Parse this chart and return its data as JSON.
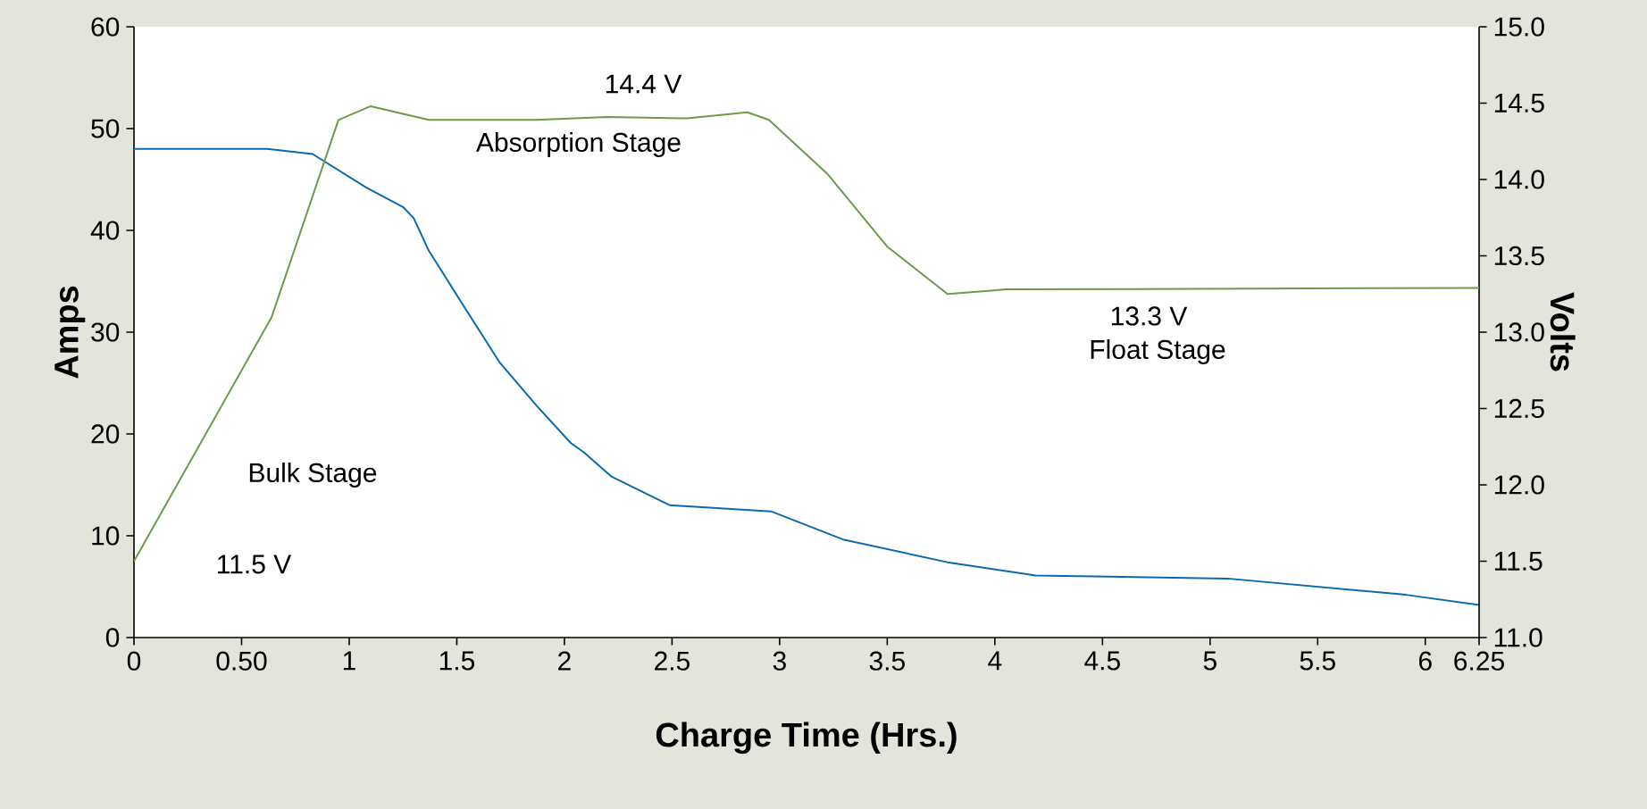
{
  "chart_data": {
    "type": "line",
    "xlabel": "Charge Time (Hrs.)",
    "ylabel": "Amps",
    "y2label": "Volts",
    "xlim": [
      0,
      6.25
    ],
    "xticks": [
      0,
      {
        "value": 0.5,
        "label": "0.50"
      },
      1,
      1.5,
      2,
      2.5,
      3,
      3.5,
      4,
      4.5,
      5,
      5.5,
      6,
      6.25
    ],
    "ylim": [
      0,
      60
    ],
    "yticks": [
      0,
      10,
      20,
      30,
      40,
      50,
      60
    ],
    "y2lim": [
      11,
      15
    ],
    "y2ticks": [
      {
        "value": 11,
        "label": "11.0"
      },
      {
        "value": 11.5,
        "label": "11.5"
      },
      {
        "value": 12,
        "label": "12.0"
      },
      {
        "value": 12.5,
        "label": "12.5"
      },
      {
        "value": 13,
        "label": "13.0"
      },
      {
        "value": 13.5,
        "label": "13.5"
      },
      {
        "value": 14,
        "label": "14.0"
      },
      {
        "value": 14.5,
        "label": "14.5"
      },
      {
        "value": 15,
        "label": "15.0"
      }
    ],
    "grid": false,
    "marker": "none",
    "line_style": "solid",
    "series": [
      {
        "color": "#0a6ab0",
        "x": [
          0,
          0.62,
          0.83,
          1.08,
          1.25,
          1.3,
          1.37,
          1.54,
          1.7,
          1.87,
          2.03,
          2.09,
          2.22,
          2.49,
          2.96,
          3.3,
          3.78,
          4.19,
          5.08,
          5.91,
          6.25
        ],
        "values": [
          48,
          48,
          47.5,
          44.2,
          42.3,
          41.2,
          38,
          32.3,
          27,
          22.8,
          19.1,
          18.2,
          15.8,
          13,
          12.4,
          9.6,
          7.4,
          6.1,
          5.8,
          4.2,
          3.2
        ]
      },
      {
        "color": "#6e9a4a",
        "axis": "y2",
        "x": [
          0,
          0.64,
          0.95,
          1.1,
          1.37,
          1.87,
          2.2,
          2.57,
          2.85,
          2.95,
          3.22,
          3.5,
          3.78,
          3.97,
          4.05,
          6.25
        ],
        "values": [
          11.5,
          13.1,
          14.39,
          14.48,
          14.39,
          14.39,
          14.41,
          14.4,
          14.44,
          14.39,
          14.04,
          13.56,
          13.25,
          13.27,
          13.28,
          13.29
        ]
      }
    ],
    "annotations": [
      "14.4 V",
      "Absorption Stage",
      "Bulk Stage",
      "11.5 V",
      "13.3 V",
      "Float Stage"
    ]
  }
}
